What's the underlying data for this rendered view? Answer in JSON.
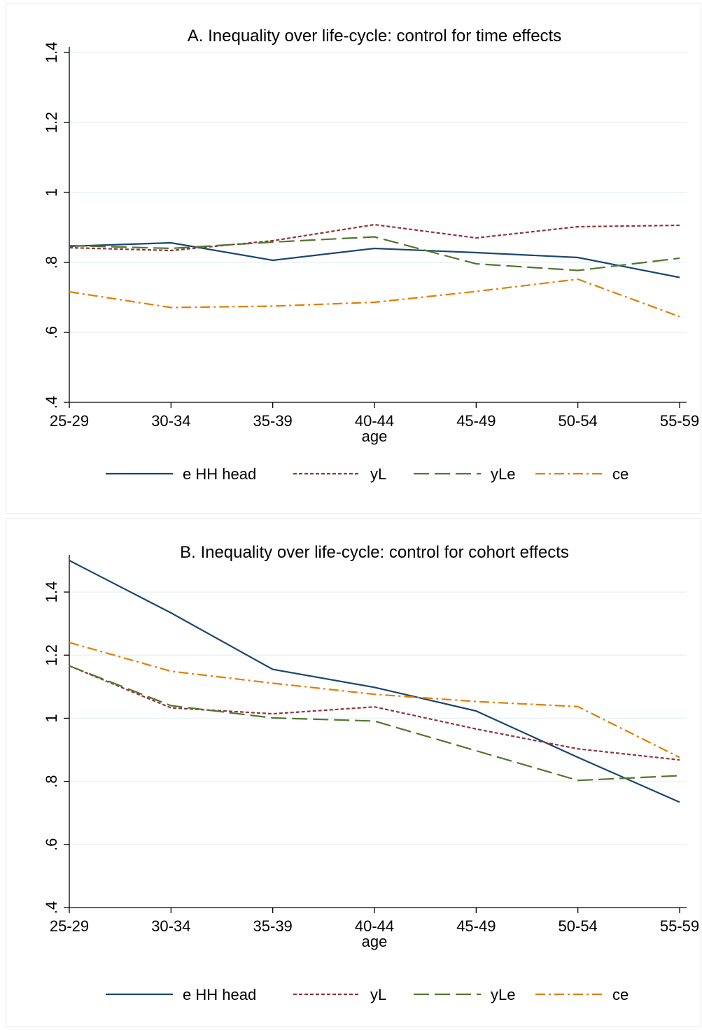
{
  "chart_data": [
    {
      "type": "line",
      "title": "A. Inequality over life-cycle: control for time effects",
      "xlabel": "age",
      "ylabel": "",
      "categories": [
        "25-29",
        "30-34",
        "35-39",
        "40-44",
        "45-49",
        "50-54",
        "55-59"
      ],
      "ylim": [
        0.4,
        1.4
      ],
      "yticks": [
        0.4,
        0.6,
        0.8,
        1.0,
        1.2,
        1.4
      ],
      "ytick_labels": [
        ".4",
        ".6",
        ".8",
        "1",
        "1.2",
        "1.4"
      ],
      "grid": true,
      "legend_position": "bottom",
      "series": [
        {
          "name": "e HH head",
          "values": [
            0.846,
            0.856,
            0.806,
            0.84,
            0.828,
            0.814,
            0.757
          ],
          "color": "#1a476f",
          "dash": "solid"
        },
        {
          "name": "yL",
          "values": [
            0.842,
            0.834,
            0.862,
            0.908,
            0.87,
            0.902,
            0.906
          ],
          "color": "#90353b",
          "dash": "short-dash"
        },
        {
          "name": "yLe",
          "values": [
            0.848,
            0.84,
            0.858,
            0.873,
            0.796,
            0.777,
            0.812
          ],
          "color": "#55752f",
          "dash": "long-dash"
        },
        {
          "name": "ce",
          "values": [
            0.716,
            0.671,
            0.675,
            0.686,
            0.717,
            0.752,
            0.645
          ],
          "color": "#e37e00",
          "dash": "dash-dot"
        }
      ]
    },
    {
      "type": "line",
      "title": "B. Inequality over life-cycle: control for cohort effects",
      "xlabel": "age",
      "ylabel": "",
      "categories": [
        "25-29",
        "30-34",
        "35-39",
        "40-44",
        "45-49",
        "50-54",
        "55-59"
      ],
      "ylim": [
        0.4,
        1.5
      ],
      "yticks": [
        0.4,
        0.6,
        0.8,
        1.0,
        1.2,
        1.4
      ],
      "ytick_labels": [
        ".4",
        ".6",
        ".8",
        "1",
        "1.2",
        "1.4"
      ],
      "grid": true,
      "legend_position": "bottom",
      "series": [
        {
          "name": "e HH head",
          "values": [
            1.5,
            1.334,
            1.155,
            1.098,
            1.023,
            0.876,
            0.734
          ],
          "color": "#1a476f",
          "dash": "solid"
        },
        {
          "name": "yL",
          "values": [
            1.166,
            1.033,
            1.014,
            1.036,
            0.966,
            0.903,
            0.868
          ],
          "color": "#90353b",
          "dash": "short-dash"
        },
        {
          "name": "yLe",
          "values": [
            1.166,
            1.04,
            1.001,
            0.991,
            0.897,
            0.803,
            0.818
          ],
          "color": "#55752f",
          "dash": "long-dash"
        },
        {
          "name": "ce",
          "values": [
            1.24,
            1.149,
            1.111,
            1.076,
            1.053,
            1.037,
            0.876
          ],
          "color": "#e37e00",
          "dash": "dash-dot"
        }
      ]
    }
  ]
}
